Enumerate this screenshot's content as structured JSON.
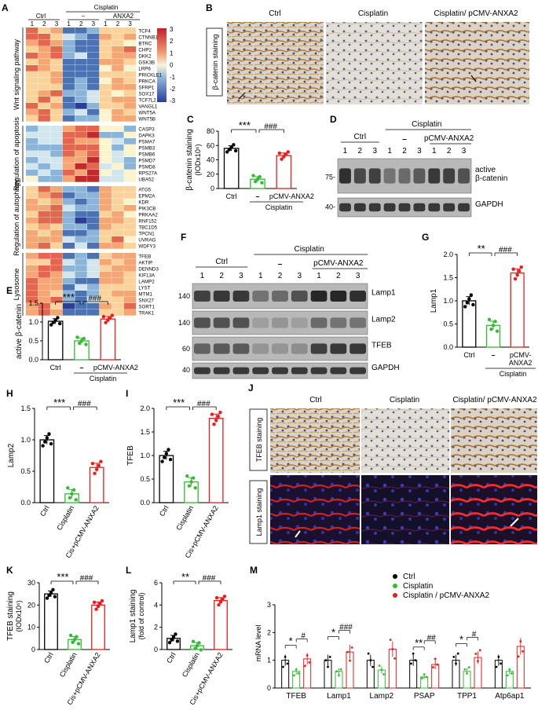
{
  "panel_letters": [
    "A",
    "B",
    "C",
    "D",
    "E",
    "F",
    "G",
    "H",
    "I",
    "J",
    "K",
    "L",
    "M"
  ],
  "panelA": {
    "header": {
      "ctrl": "Ctrl",
      "cisplatin": "Cisplatin",
      "minus": "–",
      "anxa2": "ANXA2",
      "lanes": [
        "1",
        "2",
        "3",
        "1",
        "2",
        "3",
        "1",
        "2",
        "3"
      ]
    },
    "colorbar_ticks": [
      "3",
      "2",
      "1",
      "0",
      "-1",
      "-2",
      "-3"
    ],
    "groups": [
      {
        "label": "Wnt signaling pathway",
        "genes": [
          "TCF4",
          "CTNNB1",
          "BTRC",
          "CHP2",
          "DKK2",
          "GSK3B",
          "LRP6",
          "PRICKLE1",
          "PRKCA",
          "SFRP1",
          "SOX17",
          "TCF7L2",
          "VANGL1",
          "WNT5A",
          "WNT5B"
        ]
      },
      {
        "label": "Regulation of apoptosis",
        "genes": [
          "CASP3",
          "DAPK3",
          "PSMA7",
          "PSMB3",
          "PSMB6",
          "PSMD7",
          "PSMD8",
          "RPS27A",
          "UBA52"
        ]
      },
      {
        "label": "Regulation of autophagy",
        "genes": [
          "ATG5",
          "EPM2A",
          "KDR",
          "PIK3CB",
          "PRKAA2",
          "RNF152",
          "TBC1D5",
          "TPCN1",
          "UVRAG",
          "WDFY3"
        ]
      },
      {
        "label": "Lysosome",
        "genes": [
          "TFEB",
          "AKTIP",
          "DENND3",
          "KIF13A",
          "LAMP2",
          "LYST",
          "MTM1",
          "SNX27",
          "SORT1",
          "TRAK1"
        ]
      }
    ]
  },
  "panelB": {
    "titles": [
      "Ctrl",
      "Cisplatin",
      "Cisplatin/ pCMV-ANXA2"
    ],
    "side_label": "β-catenin staining"
  },
  "panelJ": {
    "titles": [
      "Ctrl",
      "Cisplatin",
      "Cisplatin/ pCMV-ANXA2"
    ],
    "row_labels": [
      "TFEB staining",
      "Lamp1 staining"
    ]
  },
  "panelD": {
    "ctrl": "Ctrl",
    "cisplatin": "Cisplatin",
    "minus": "–",
    "anxa2": "pCMV-ANXA2",
    "lanes": [
      "1",
      "2",
      "3",
      "1",
      "2",
      "3",
      "1",
      "2",
      "3"
    ],
    "markers": [
      "75-",
      "40-"
    ],
    "bands": [
      "active",
      "β-catenin",
      "GAPDH"
    ]
  },
  "panelF": {
    "ctrl": "Ctrl",
    "cisplatin": "Cisplatin",
    "minus": "–",
    "anxa2": "pCMV-ANXA2",
    "lanes": [
      "1",
      "2",
      "3",
      "1",
      "2",
      "3",
      "1",
      "2",
      "3"
    ],
    "markers": [
      "140",
      "140",
      "60",
      "40"
    ],
    "bands": [
      "Lamp1",
      "Lamp2",
      "TFEB",
      "GAPDH"
    ]
  },
  "chart_data": [
    {
      "id": "C",
      "type": "bar",
      "ylabel": "β-catenin staining",
      "ylabel2": "(IODx10⁶)",
      "ylim": [
        0,
        80
      ],
      "yticks": [
        "0",
        "20",
        "40",
        "60",
        "80"
      ],
      "categories": [
        "Ctrl",
        "–",
        "pCMV-ANXA2"
      ],
      "group_label": "Cisplatin",
      "values": [
        56,
        13,
        46
      ],
      "sig": [
        "***",
        "###"
      ]
    },
    {
      "id": "E",
      "type": "bar",
      "ylabel": "active  β-catenin",
      "ylim": [
        0,
        1.5
      ],
      "yticks": [
        "0.0",
        "0.5",
        "1.0",
        "1.5"
      ],
      "categories": [
        "Ctrl",
        "–",
        "pCMV-ANXA2"
      ],
      "group_label": "Cisplatin",
      "values": [
        1.02,
        0.5,
        1.08
      ],
      "sig": [
        "***",
        "###"
      ]
    },
    {
      "id": "G",
      "type": "bar",
      "ylabel": "Lamp1",
      "ylim": [
        0,
        2.0
      ],
      "yticks": [
        "0.0",
        "0.5",
        "1.0",
        "1.5",
        "2.0"
      ],
      "categories": [
        "Ctrl",
        "–",
        "pCMV-ANXA2"
      ],
      "group_label": "Cisplatin",
      "values": [
        1.0,
        0.47,
        1.6
      ],
      "sig": [
        "**",
        "###"
      ]
    },
    {
      "id": "H",
      "type": "bar",
      "ylabel": "Lamp2",
      "ylim": [
        0,
        1.5
      ],
      "yticks": [
        "0.0",
        "0.5",
        "1.0",
        "1.5"
      ],
      "categories": [
        "Ctrl",
        "Cisplatin",
        "Cis+pCMV-ANXA2"
      ],
      "values": [
        1.0,
        0.14,
        0.56
      ],
      "sig": [
        "***",
        "###"
      ]
    },
    {
      "id": "I",
      "type": "bar",
      "ylabel": "TFEB",
      "ylim": [
        0,
        2.0
      ],
      "yticks": [
        "0.0",
        "0.5",
        "1.0",
        "1.5",
        "2.0"
      ],
      "categories": [
        "Ctrl",
        "Cisplatin",
        "Cis+pCMV-ANXA2"
      ],
      "values": [
        1.0,
        0.44,
        1.79
      ],
      "sig": [
        "***",
        "###"
      ]
    },
    {
      "id": "K",
      "type": "bar",
      "ylabel": "TFEB staining",
      "ylabel2": "(IODx10⁶)",
      "ylim": [
        0,
        30
      ],
      "yticks": [
        "0",
        "10",
        "20",
        "30"
      ],
      "categories": [
        "Ctrl",
        "Cisplatin",
        "Cis+pCMV-ANXA2"
      ],
      "values": [
        25,
        4.5,
        20
      ],
      "sig": [
        "***",
        "###"
      ]
    },
    {
      "id": "L",
      "type": "bar",
      "ylabel": "Lamp1 staining",
      "ylabel2": "(fold of control)",
      "ylim": [
        0,
        6
      ],
      "yticks": [
        "0",
        "2",
        "4",
        "6"
      ],
      "categories": [
        "Ctrl",
        "Cisplatin",
        "Cis+pCMV-ANXA2"
      ],
      "values": [
        1.0,
        0.35,
        4.4
      ],
      "sig": [
        "**",
        "###"
      ]
    },
    {
      "id": "M",
      "type": "bar",
      "ylabel": "mRNA level",
      "ylim": [
        0,
        3
      ],
      "yticks": [
        "0",
        "1",
        "2",
        "3"
      ],
      "categories": [
        "TFEB",
        "Lamp1",
        "Lamp2",
        "PSAP",
        "TPP1",
        "Atp6ap1"
      ],
      "legend": [
        "Ctrl",
        "Cisplatin",
        "Cisplatin / pCMV-ANXA2"
      ],
      "series": [
        {
          "name": "Ctrl",
          "values": [
            1.0,
            1.0,
            1.0,
            1.0,
            1.0,
            1.0
          ]
        },
        {
          "name": "Cisplatin",
          "values": [
            0.6,
            0.6,
            0.65,
            0.4,
            0.6,
            0.6
          ]
        },
        {
          "name": "Cisplatin / pCMV-ANXA2",
          "values": [
            1.05,
            1.3,
            1.4,
            0.85,
            1.1,
            1.5
          ]
        }
      ],
      "sig": [
        {
          "cat": "TFEB",
          "marks": [
            "*",
            "#"
          ]
        },
        {
          "cat": "Lamp1",
          "marks": [
            "*",
            "###"
          ]
        },
        {
          "cat": "PSAP",
          "marks": [
            "**",
            "##"
          ]
        },
        {
          "cat": "TPP1",
          "marks": [
            "*",
            "#"
          ]
        }
      ]
    }
  ],
  "colors": {
    "ctrl": "#000000",
    "cisplatin": "#33bb33",
    "anxa2": "#e61e1e"
  }
}
